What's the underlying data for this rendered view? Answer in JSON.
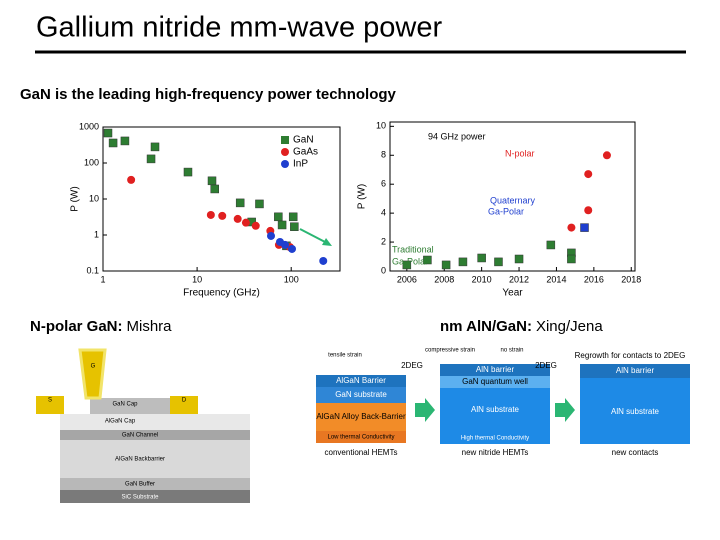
{
  "title": "Gallium nitride mm-wave power",
  "subtitle": "GaN is the leading high-frequency power technology",
  "captions": [
    {
      "bold": "N-polar GaN:",
      "text": "Mishra"
    },
    {
      "bold": "nm AlN/GaN:",
      "text": "Xing/Jena"
    }
  ],
  "chart_data": [
    {
      "type": "scatter",
      "xlabel": "Frequency (GHz)",
      "ylabel": "P (W)",
      "log_x": true,
      "log_y": true,
      "xlim": [
        1,
        330
      ],
      "ylim": [
        0.1,
        1000
      ],
      "xticks": [
        1,
        10,
        100
      ],
      "yticks": [
        0.1,
        1,
        10,
        100,
        1000
      ],
      "legend": "upper right",
      "series": [
        {
          "name": "GaN",
          "color": "#2e7d32",
          "marker": "square",
          "x": [
            1.13,
            1.28,
            1.71,
            3.57,
            3.24,
            8.0,
            14.4,
            15.4,
            28.7,
            46,
            38,
            73,
            80,
            105,
            108,
            89
          ],
          "values": [
            680,
            360,
            410,
            280,
            130,
            56,
            32,
            19,
            7.8,
            7.3,
            2.3,
            3.2,
            1.9,
            3.2,
            1.7,
            0.5
          ]
        },
        {
          "name": "GaAs",
          "color": "#e02020",
          "marker": "circle",
          "x": [
            1.99,
            14,
            18.5,
            27,
            33,
            42,
            60,
            74,
            97
          ],
          "values": [
            34,
            3.6,
            3.4,
            2.8,
            2.2,
            1.8,
            1.3,
            0.53,
            0.46
          ]
        },
        {
          "name": "InP",
          "color": "#1f3fcf",
          "marker": "circle",
          "x": [
            61,
            76,
            86,
            102,
            219
          ],
          "values": [
            0.94,
            0.64,
            0.53,
            0.41,
            0.19
          ]
        }
      ]
    },
    {
      "type": "scatter",
      "xlabel": "Year",
      "ylabel": "P (W)",
      "xlim": [
        2005.1,
        2018.2
      ],
      "ylim": [
        0,
        10.3
      ],
      "xticks": [
        2006,
        2008,
        2010,
        2012,
        2014,
        2016,
        2018
      ],
      "yticks": [
        0,
        2,
        4,
        6,
        8,
        10
      ],
      "annotations": [
        {
          "text": "94 GHz power",
          "color": "#000000"
        },
        {
          "text": "N-polar",
          "color": "#e02020"
        },
        {
          "text": "Quaternary",
          "color": "#1f3fcf"
        },
        {
          "text": "Ga-Polar",
          "color": "#1f3fcf"
        },
        {
          "text": "Traditional",
          "color": "#2e7d32"
        },
        {
          "text": "Ga-Polar",
          "color": "#2e7d32"
        }
      ],
      "series": [
        {
          "color": "#2e7d32",
          "marker": "square",
          "x": [
            2006,
            2007.1,
            2008.1,
            2009,
            2010,
            2010.9,
            2012,
            2013.7,
            2014.8,
            2014.8
          ],
          "values": [
            0.42,
            0.76,
            0.42,
            0.63,
            0.9,
            0.63,
            0.83,
            1.8,
            1.25,
            0.83
          ]
        },
        {
          "color": "#e02020",
          "marker": "circle",
          "x": [
            2014.8,
            2015.7,
            2015.7,
            2016.7
          ],
          "values": [
            3.0,
            4.2,
            6.7,
            8.0
          ]
        },
        {
          "color": "#1f3fcf",
          "marker": "square",
          "x": [
            2015.5
          ],
          "values": [
            3.0
          ]
        }
      ]
    }
  ],
  "diagram_left": {
    "labels": [
      "GaN Cap",
      "AlGaN Cap",
      "GaN Channel",
      "AlGaN Backbarrier",
      "GaN Buffer",
      "SiC Substrate",
      "S",
      "D",
      "G"
    ]
  },
  "diagram_right": {
    "labels": [
      "tensile strain",
      "compressive strain",
      "no strain",
      "Regrowth for contacts to 2DEG",
      "2DEG",
      "2DEG"
    ],
    "panels": [
      {
        "layers": [
          "AlGaN Barrier",
          "GaN substrate",
          "AlGaN Alloy Back-Barrier",
          "Low thermal Conductivity"
        ],
        "caption": "conventional HEMTs"
      },
      {
        "layers": [
          "AlN barrier",
          "GaN quantum well",
          "AlN substrate",
          "High thermal Conductivity"
        ],
        "caption": "new nitride HEMTs"
      },
      {
        "layers": [
          "AlN barrier",
          "AlN substrate"
        ],
        "caption": "new contacts"
      }
    ]
  }
}
